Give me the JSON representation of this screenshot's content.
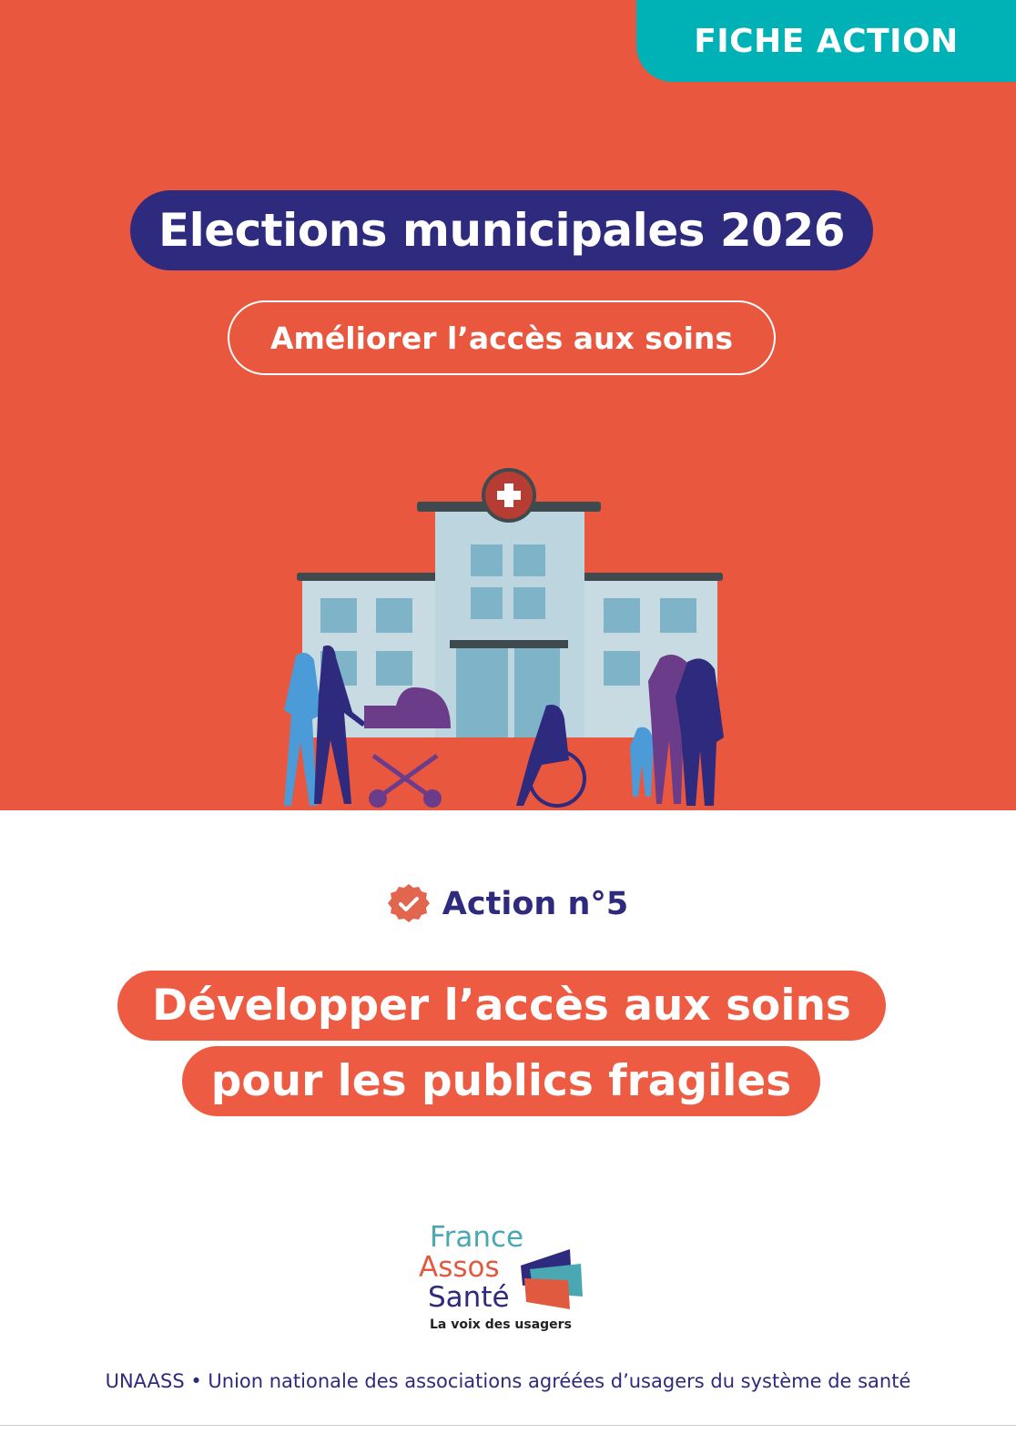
{
  "badge": "FICHE ACTION",
  "title": "Elections municipales 2026",
  "subtitle": "Améliorer l’accès aux soins",
  "action": {
    "icon": "check-badge-icon",
    "label": "Action n°5"
  },
  "headline": {
    "line1": "Développer l’accès aux soins",
    "line2": "pour les publics fragiles"
  },
  "logo": {
    "word1": "France",
    "word2": "Assos",
    "word3": "Santé",
    "tagline": "La voix des usagers"
  },
  "footer": "UNAASS • Union nationale des associations agréées d’usagers du système de santé",
  "colors": {
    "background_top": "#E9573E",
    "navy": "#2E2A7E",
    "teal": "#00B2B5",
    "coral": "#EE5B43"
  }
}
